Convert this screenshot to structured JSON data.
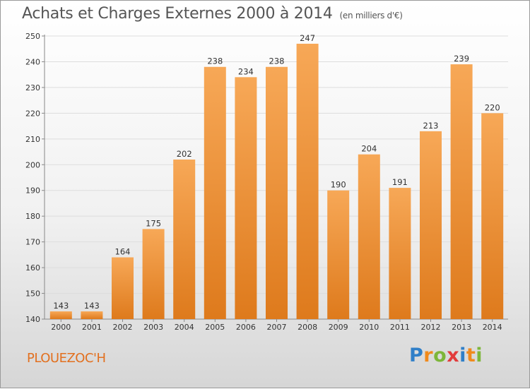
{
  "chart_data": {
    "type": "bar",
    "title": "Achats et Charges Externes 2000 à 2014",
    "subtitle": "(en milliers d'€)",
    "categories": [
      "2000",
      "2001",
      "2002",
      "2003",
      "2004",
      "2005",
      "2006",
      "2007",
      "2008",
      "2009",
      "2010",
      "2011",
      "2012",
      "2013",
      "2014"
    ],
    "values": [
      143,
      143,
      164,
      175,
      202,
      238,
      234,
      238,
      247,
      190,
      204,
      191,
      213,
      239,
      220
    ],
    "ylim": [
      140,
      250
    ],
    "yticks": [
      140,
      150,
      160,
      170,
      180,
      190,
      200,
      210,
      220,
      230,
      240,
      250
    ],
    "grid": true,
    "bar_color_light": "#f7a857",
    "bar_color_dark": "#de7a1c"
  },
  "commune": "PLOUEZOC'H",
  "logo": {
    "text": "Proxiti",
    "letters": [
      {
        "ch": "P",
        "color": "#2f7fc8"
      },
      {
        "ch": "r",
        "color": "#f08a1c"
      },
      {
        "ch": "o",
        "color": "#7db63a"
      },
      {
        "ch": "x",
        "color": "#e23b3b"
      },
      {
        "ch": "i",
        "color": "#2f7fc8"
      },
      {
        "ch": "t",
        "color": "#f08a1c"
      },
      {
        "ch": "i",
        "color": "#7db63a"
      }
    ]
  }
}
